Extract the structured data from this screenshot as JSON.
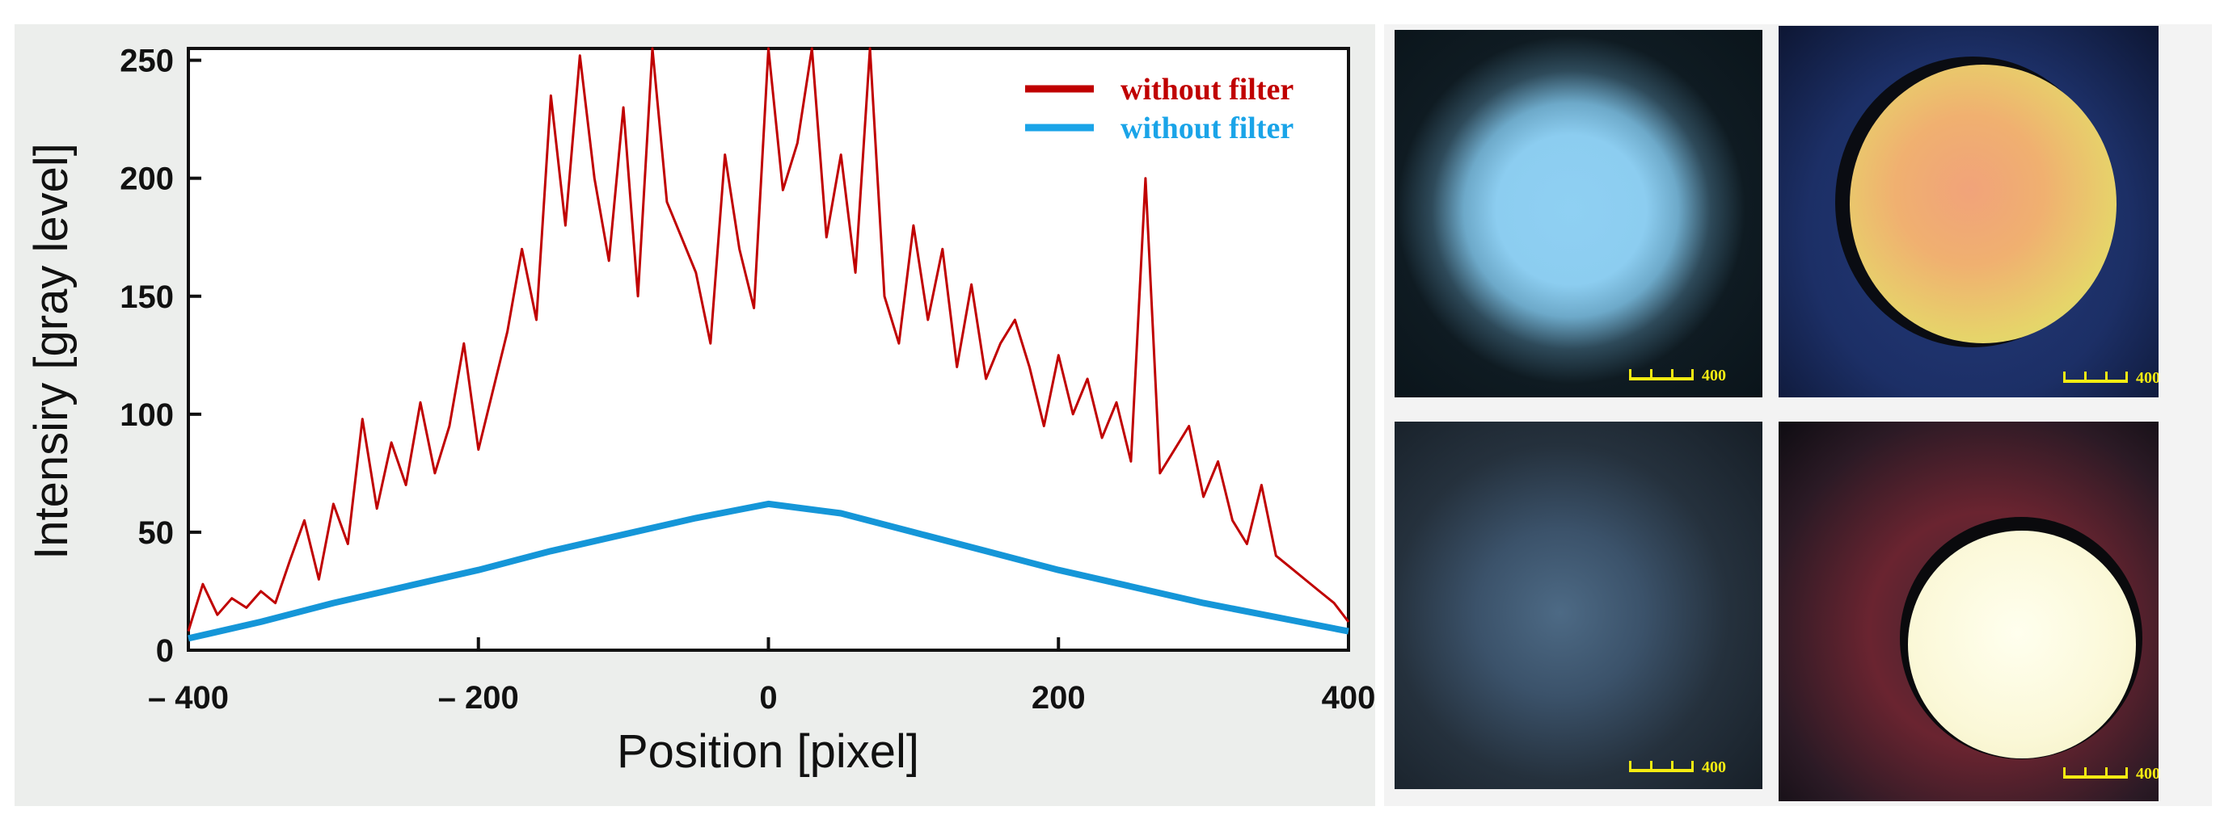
{
  "chart_data": {
    "type": "line",
    "xlabel": "Position [pixel]",
    "ylabel": "Intensiry [gray level]",
    "xlim": [
      -400,
      400
    ],
    "ylim": [
      0,
      255
    ],
    "x_ticks": [
      -400,
      -200,
      0,
      200,
      400
    ],
    "x_tick_labels": [
      "– 400",
      "– 200",
      "0",
      "200",
      "400"
    ],
    "y_ticks": [
      0,
      50,
      100,
      150,
      200,
      250
    ],
    "y_tick_labels": [
      "0",
      "50",
      "100",
      "150",
      "200",
      "250"
    ],
    "legend_position": "top-right",
    "series": [
      {
        "name": "without filter",
        "color": "#c00000",
        "x": [
          -400,
          -390,
          -380,
          -370,
          -360,
          -350,
          -340,
          -330,
          -320,
          -310,
          -300,
          -290,
          -280,
          -270,
          -260,
          -250,
          -240,
          -230,
          -220,
          -210,
          -200,
          -190,
          -180,
          -170,
          -160,
          -150,
          -140,
          -130,
          -120,
          -110,
          -100,
          -90,
          -80,
          -70,
          -60,
          -50,
          -40,
          -30,
          -20,
          -10,
          0,
          10,
          20,
          30,
          40,
          50,
          60,
          70,
          80,
          90,
          100,
          110,
          120,
          130,
          140,
          150,
          160,
          170,
          180,
          190,
          200,
          210,
          220,
          230,
          240,
          250,
          260,
          270,
          280,
          290,
          300,
          310,
          320,
          330,
          340,
          350,
          360,
          370,
          380,
          390,
          400
        ],
        "values": [
          8,
          28,
          15,
          22,
          18,
          25,
          20,
          38,
          55,
          30,
          62,
          45,
          98,
          60,
          88,
          70,
          105,
          75,
          95,
          130,
          85,
          110,
          135,
          170,
          140,
          235,
          180,
          252,
          200,
          165,
          230,
          150,
          255,
          190,
          175,
          160,
          130,
          210,
          170,
          145,
          255,
          195,
          215,
          255,
          175,
          210,
          160,
          255,
          150,
          130,
          180,
          140,
          170,
          120,
          155,
          115,
          130,
          140,
          120,
          95,
          125,
          100,
          115,
          90,
          105,
          80,
          200,
          75,
          85,
          95,
          65,
          80,
          55,
          45,
          70,
          40,
          35,
          30,
          25,
          20,
          12
        ]
      },
      {
        "name": "without filter",
        "color": "#1596d8",
        "x": [
          -400,
          -350,
          -300,
          -250,
          -200,
          -150,
          -100,
          -50,
          0,
          50,
          100,
          150,
          200,
          250,
          300,
          350,
          400
        ],
        "values": [
          5,
          12,
          20,
          27,
          34,
          42,
          49,
          56,
          62,
          58,
          50,
          42,
          34,
          27,
          20,
          14,
          8
        ]
      }
    ]
  },
  "images": {
    "scale_label": "400",
    "panels": [
      {
        "position": "top-left",
        "description_name": "blue-speckle-spot"
      },
      {
        "position": "top-right",
        "description_name": "disc-color-top"
      },
      {
        "position": "bottom-left",
        "description_name": "dark-blur-spot"
      },
      {
        "position": "bottom-right",
        "description_name": "disc-color-bottom"
      }
    ]
  }
}
